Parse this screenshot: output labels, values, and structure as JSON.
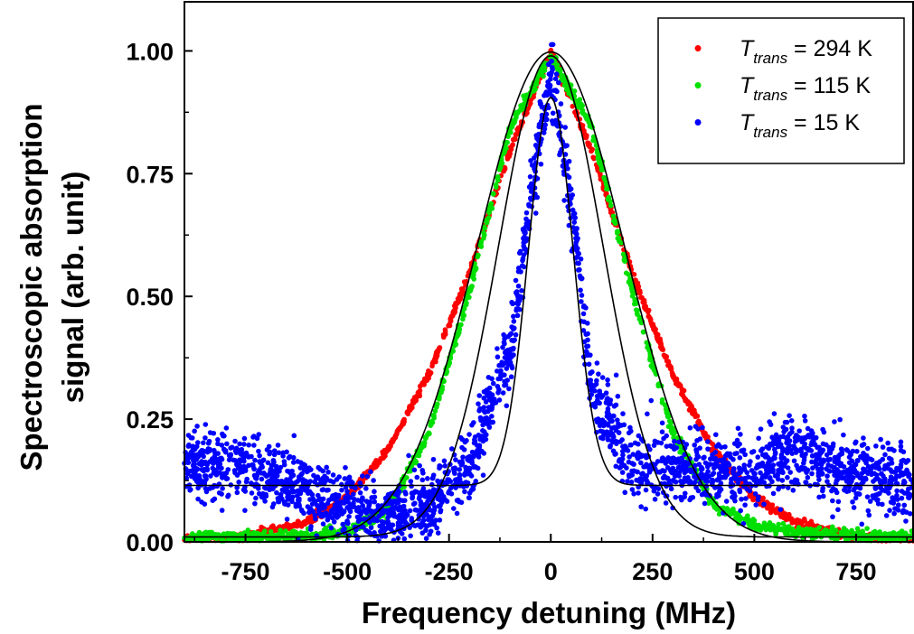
{
  "chart_data": {
    "type": "scatter",
    "title": "",
    "xlabel": "Frequency detuning (MHz)",
    "ylabel_line1": "Spectroscopic absorption",
    "ylabel_line2": "signal (arb. unit)",
    "xlim": [
      -900,
      890
    ],
    "ylim": [
      0.0,
      1.1
    ],
    "x_ticks": [
      -750,
      -500,
      -250,
      0,
      250,
      500,
      750
    ],
    "x_tick_labels": [
      "-750",
      "-500",
      "-250",
      "0",
      "250",
      "500",
      "750"
    ],
    "y_ticks": [
      0.0,
      0.25,
      0.5,
      0.75,
      1.0
    ],
    "y_tick_labels": [
      "0.00",
      "0.25",
      "0.50",
      "0.75",
      "1.00"
    ],
    "grid": false,
    "legend_position": "top-right",
    "series": [
      {
        "name": "T_trans = 294 K",
        "legend_symbol": "T",
        "legend_subscript": "trans",
        "legend_value": "= 294 K",
        "color": "#ff0000",
        "x": [
          -900,
          -750,
          -600,
          -500,
          -400,
          -300,
          -200,
          -100,
          0,
          100,
          200,
          300,
          400,
          500,
          600,
          750,
          890
        ],
        "y": [
          0.004,
          0.01,
          0.04,
          0.091,
          0.187,
          0.341,
          0.546,
          0.797,
          1.0,
          0.797,
          0.546,
          0.341,
          0.187,
          0.091,
          0.04,
          0.01,
          0.002
        ],
        "fit_type": "gaussian",
        "fit_center": 0,
        "fit_amplitude": 0.998,
        "fit_offset": 0.0,
        "fit_sigma": 180
      },
      {
        "name": "T_trans = 115 K",
        "legend_symbol": "T",
        "legend_subscript": "trans",
        "legend_value": "= 115 K",
        "color": "#00e000",
        "x": [
          -900,
          -600,
          -500,
          -400,
          -300,
          -200,
          -100,
          0,
          100,
          200,
          300,
          400,
          500,
          600,
          750,
          890
        ],
        "y": [
          0.008,
          0.012,
          0.02,
          0.063,
          0.222,
          0.51,
          0.845,
          0.99,
          0.845,
          0.51,
          0.222,
          0.075,
          0.035,
          0.02,
          0.012,
          0.01
        ],
        "fit_type": "gaussian",
        "fit_center": 0,
        "fit_amplitude": 0.98,
        "fit_offset": 0.01,
        "fit_sigma": 128
      },
      {
        "name": "T_trans = 15 K",
        "legend_symbol": "T",
        "legend_subscript": "trans",
        "legend_value": "= 15 K",
        "color": "#0000ff",
        "x": [
          -900,
          -750,
          -600,
          -500,
          -400,
          -300,
          -200,
          -100,
          -50,
          0,
          50,
          100,
          200,
          300,
          400,
          500,
          600,
          750,
          890
        ],
        "y": [
          0.16,
          0.15,
          0.11,
          0.07,
          0.05,
          0.07,
          0.15,
          0.38,
          0.7,
          0.95,
          0.7,
          0.3,
          0.16,
          0.15,
          0.14,
          0.14,
          0.19,
          0.14,
          0.12
        ],
        "fit_type": "gaussian",
        "fit_center": 0,
        "fit_amplitude": 0.79,
        "fit_offset": 0.115,
        "fit_sigma": 55
      }
    ],
    "fit_line_color": "#000000",
    "legend_marker": "•"
  }
}
